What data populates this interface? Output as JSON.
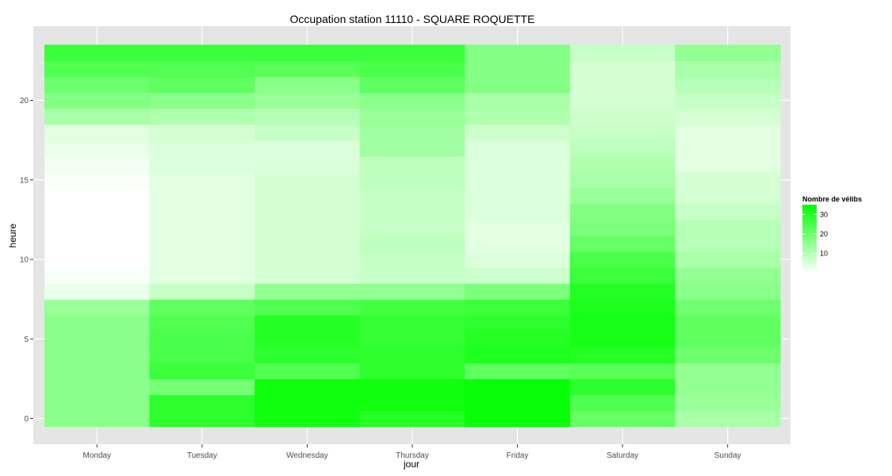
{
  "chart_data": {
    "type": "heatmap",
    "title": "Occupation station 11110 - SQUARE ROQUETTE",
    "xlabel": "jour",
    "ylabel": "heure",
    "x_categories": [
      "Monday",
      "Tuesday",
      "Wednesday",
      "Thursday",
      "Friday",
      "Saturday",
      "Sunday"
    ],
    "y_values": [
      0,
      1,
      2,
      3,
      4,
      5,
      6,
      7,
      8,
      9,
      10,
      11,
      12,
      13,
      14,
      15,
      16,
      17,
      18,
      19,
      20,
      21,
      22,
      23
    ],
    "y_ticks": [
      0,
      5,
      10,
      15,
      20
    ],
    "ylim": [
      -0.5,
      23.5
    ],
    "legend": {
      "title": "Nombre de vélibs",
      "ticks": [
        10,
        20,
        30
      ],
      "range": [
        0,
        35
      ],
      "low_color": "#ffffff",
      "high_color": "#00ff00",
      "position": "right"
    },
    "panel_background": "#e5e5e5",
    "grid": true,
    "series": [
      {
        "name": "Monday",
        "values": [
          16,
          16,
          16,
          16,
          16,
          16,
          16,
          14,
          3,
          1,
          0,
          0,
          0,
          0,
          0,
          1,
          2,
          3,
          4,
          12,
          17,
          20,
          24,
          27
        ]
      },
      {
        "name": "Tuesday",
        "values": [
          29,
          29,
          19,
          27,
          25,
          25,
          24,
          22,
          8,
          4,
          4,
          4,
          4,
          4,
          4,
          4,
          5,
          5,
          6,
          11,
          16,
          22,
          24,
          27
        ]
      },
      {
        "name": "Wednesday",
        "values": [
          33,
          33,
          33,
          24,
          29,
          30,
          30,
          24,
          15,
          6,
          6,
          6,
          6,
          6,
          6,
          6,
          5,
          5,
          8,
          10,
          14,
          16,
          23,
          27
        ]
      },
      {
        "name": "Thursday",
        "values": [
          30,
          33,
          33,
          29,
          29,
          28,
          28,
          26,
          15,
          8,
          8,
          9,
          8,
          8,
          8,
          9,
          9,
          13,
          13,
          14,
          16,
          22,
          25,
          27
        ]
      },
      {
        "name": "Friday",
        "values": [
          34,
          34,
          34,
          22,
          31,
          30,
          29,
          27,
          18,
          7,
          5,
          4,
          4,
          5,
          5,
          5,
          5,
          5,
          7,
          11,
          12,
          17,
          17,
          17
        ]
      },
      {
        "name": "Saturday",
        "values": [
          21,
          24,
          29,
          23,
          30,
          32,
          32,
          31,
          30,
          27,
          25,
          21,
          18,
          17,
          14,
          12,
          11,
          9,
          8,
          7,
          6,
          6,
          6,
          8
        ]
      },
      {
        "name": "Sunday",
        "values": [
          12,
          14,
          15,
          15,
          20,
          22,
          22,
          20,
          16,
          15,
          12,
          10,
          10,
          8,
          6,
          6,
          4,
          4,
          4,
          6,
          8,
          10,
          12,
          15
        ]
      }
    ]
  }
}
